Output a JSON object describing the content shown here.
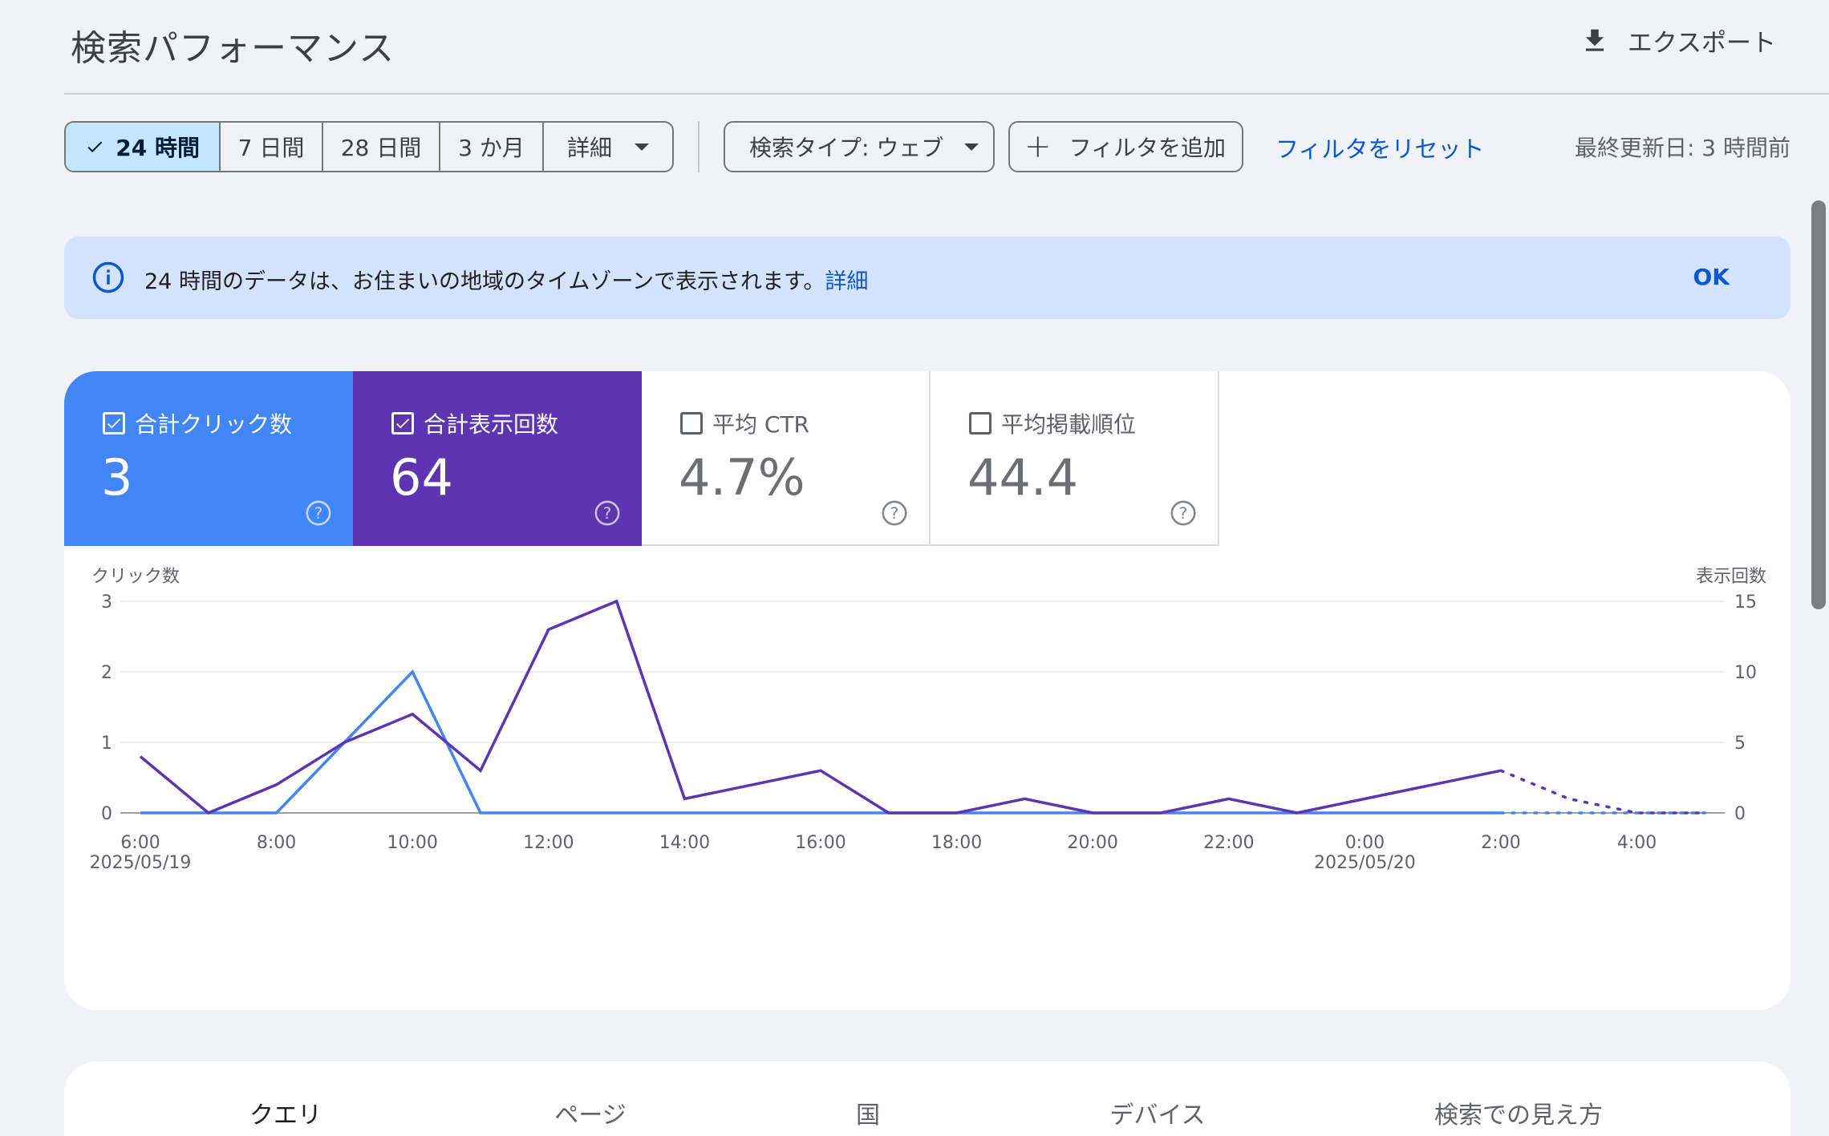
{
  "header": {
    "title": "検索パフォーマンス",
    "export_label": "エクスポート"
  },
  "filters": {
    "ranges": [
      "24 時間",
      "7 日間",
      "28 日間",
      "3 か月",
      "詳細"
    ],
    "active_range": "24 時間",
    "search_type": "検索タイプ: ウェブ",
    "add_filter": "フィルタを追加",
    "reset": "フィルタをリセット",
    "last_updated": "最終更新日: 3 時間前"
  },
  "banner": {
    "message": "24 時間のデータは、お住まいの地域のタイムゾーンで表示されます。",
    "link": "詳細",
    "ok": "OK"
  },
  "metrics": [
    {
      "label": "合計クリック数",
      "value": "3",
      "checked": true,
      "color": "#4285f4"
    },
    {
      "label": "合計表示回数",
      "value": "64",
      "checked": true,
      "color": "#5e35b1"
    },
    {
      "label": "平均 CTR",
      "value": "4.7%",
      "checked": false
    },
    {
      "label": "平均掲載順位",
      "value": "44.4",
      "checked": false
    }
  ],
  "chart_data": {
    "type": "line",
    "ylabel_left": "クリック数",
    "ylabel_right": "表示回数",
    "ylim_left": [
      0,
      3
    ],
    "ylim_right": [
      0,
      15
    ],
    "yticks_left": [
      "0",
      "1",
      "2",
      "3"
    ],
    "yticks_right": [
      "0",
      "5",
      "10",
      "15"
    ],
    "x": [
      "6:00",
      "7:00",
      "8:00",
      "9:00",
      "10:00",
      "11:00",
      "12:00",
      "13:00",
      "14:00",
      "15:00",
      "16:00",
      "17:00",
      "18:00",
      "19:00",
      "20:00",
      "21:00",
      "22:00",
      "23:00",
      "0:00",
      "1:00",
      "2:00",
      "3:00",
      "4:00",
      "5:00"
    ],
    "x_tick_labels": [
      {
        "label": "6:00",
        "sub": "2025/05/19"
      },
      {
        "label": "8:00",
        "sub": ""
      },
      {
        "label": "10:00",
        "sub": ""
      },
      {
        "label": "12:00",
        "sub": ""
      },
      {
        "label": "14:00",
        "sub": ""
      },
      {
        "label": "16:00",
        "sub": ""
      },
      {
        "label": "18:00",
        "sub": ""
      },
      {
        "label": "20:00",
        "sub": ""
      },
      {
        "label": "22:00",
        "sub": ""
      },
      {
        "label": "0:00",
        "sub": "2025/05/20"
      },
      {
        "label": "2:00",
        "sub": ""
      },
      {
        "label": "4:00",
        "sub": ""
      }
    ],
    "series": [
      {
        "name": "合計クリック数",
        "axis": "left",
        "color": "#4285f4",
        "values": [
          0,
          0,
          0,
          1,
          2,
          0,
          0,
          0,
          0,
          0,
          0,
          0,
          0,
          0,
          0,
          0,
          0,
          0,
          0,
          0,
          0,
          0,
          0,
          0
        ],
        "solid_until": 20
      },
      {
        "name": "合計表示回数",
        "axis": "right",
        "color": "#5e35b1",
        "values": [
          4,
          0,
          2,
          5,
          7,
          3,
          13,
          15,
          1,
          2,
          3,
          0,
          0,
          1,
          0,
          0,
          1,
          0,
          1,
          2,
          3,
          1,
          0,
          0
        ],
        "solid_until": 20
      }
    ],
    "grid": true
  },
  "tabs": [
    "クエリ",
    "ページ",
    "国",
    "デバイス",
    "検索での見え方"
  ],
  "active_tab": "クエリ"
}
